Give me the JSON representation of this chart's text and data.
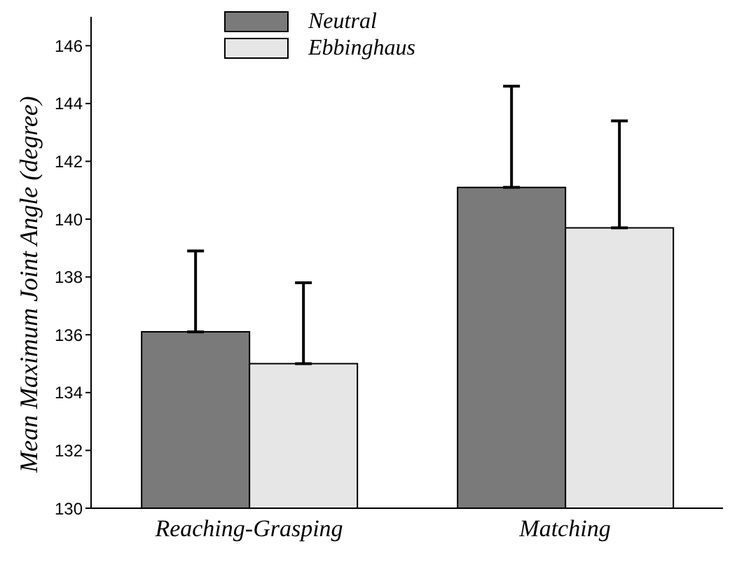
{
  "chart_data": {
    "type": "bar",
    "ylabel": "Mean Maximum Joint Angle (degree)",
    "categories": [
      "Reaching-Grasping",
      "Matching"
    ],
    "series": [
      {
        "name": "Neutral",
        "color": "#7a7a7a",
        "values": [
          136.1,
          141.1
        ],
        "errors": [
          [
            136.1,
            138.9
          ],
          [
            141.1,
            144.6
          ]
        ]
      },
      {
        "name": "Ebbinghaus",
        "color": "#e6e6e6",
        "values": [
          135.0,
          139.7
        ],
        "errors": [
          [
            135.0,
            137.8
          ],
          [
            139.7,
            143.4
          ]
        ]
      }
    ],
    "ylim": [
      130,
      147
    ],
    "yticks": [
      130,
      132,
      134,
      136,
      138,
      140,
      142,
      144,
      146
    ],
    "grid": false,
    "legend": "top left"
  }
}
